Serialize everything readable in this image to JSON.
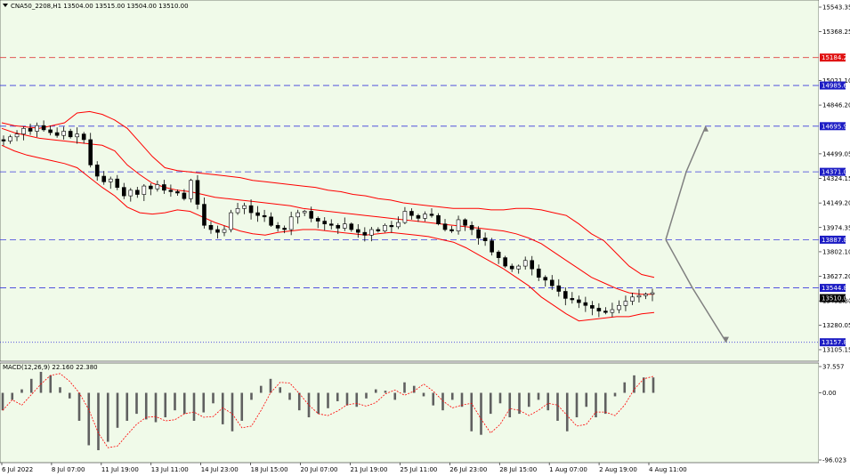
{
  "header": {
    "symbol_line": "CNA50_2208,H1  13504.00 13515.00 13504.00 13510.00",
    "macd_label": "MACD(12,26,9) 22.160 22.380"
  },
  "colors": {
    "background": "#f0fae9",
    "candle": "#000000",
    "band": "#ff0000",
    "hline_blue": "#3a3adc",
    "hline_red": "#e04040",
    "hline_dotted": "#3a3adc",
    "forecast": "#808080",
    "macd_hist": "#606060",
    "macd_signal": "#ff0000",
    "tag_blue_bg": "#1c1cc4",
    "tag_red_bg": "#e01010",
    "tag_black_bg": "#000000"
  },
  "chart_data": [
    {
      "type": "candlestick",
      "title": "CNA50_2208,H1",
      "ohlc_last": {
        "open": 13504.0,
        "high": 13515.0,
        "low": 13504.0,
        "close": 13510.0
      },
      "y_ticks": [
        "15543.35",
        "15368.25",
        "15021.10",
        "14846.20",
        "14499.05",
        "14324.15",
        "14149.20",
        "13974.35",
        "13802.10",
        "13627.20",
        "13452.30",
        "13280.05",
        "13105.15"
      ],
      "x_ticks": [
        "6 Jul 2022",
        "8 Jul 07:00",
        "11 Jul 19:00",
        "13 Jul 11:00",
        "14 Jul 23:00",
        "18 Jul 15:00",
        "20 Jul 07:00",
        "21 Jul 19:00",
        "25 Jul 11:00",
        "26 Jul 23:00",
        "28 Jul 15:00",
        "1 Aug 07:00",
        "2 Aug 19:00",
        "4 Aug 11:00"
      ],
      "ylim": [
        13060,
        15590
      ],
      "close_path": [
        14590,
        14620,
        14640,
        14680,
        14660,
        14700,
        14670,
        14650,
        14630,
        14660,
        14620,
        14640,
        14600,
        14420,
        14340,
        14300,
        14320,
        14260,
        14200,
        14240,
        14210,
        14270,
        14250,
        14280,
        14240,
        14230,
        14220,
        14180,
        14310,
        14140,
        13990,
        13960,
        13940,
        13960,
        14080,
        14110,
        14130,
        14080,
        14060,
        14050,
        13990,
        13970,
        13960,
        14050,
        14080,
        14090,
        14040,
        14020,
        14000,
        13990,
        13970,
        14000,
        13960,
        13940,
        13920,
        13960,
        13950,
        13990,
        13980,
        14010,
        14090,
        14060,
        14040,
        14070,
        14060,
        14000,
        13960,
        13950,
        14030,
        13990,
        13960,
        13900,
        13880,
        13800,
        13760,
        13700,
        13680,
        13700,
        13740,
        13680,
        13620,
        13600,
        13560,
        13520,
        13470,
        13460,
        13440,
        13420,
        13400,
        13380,
        13370,
        13390,
        13420,
        13450,
        13480,
        13490,
        13500,
        13510
      ],
      "bollinger": {
        "upper": [
          14720,
          14700,
          14690,
          14680,
          14700,
          14720,
          14790,
          14800,
          14780,
          14740,
          14680,
          14580,
          14480,
          14400,
          14380,
          14370,
          14360,
          14350,
          14340,
          14330,
          14310,
          14300,
          14290,
          14280,
          14270,
          14260,
          14240,
          14230,
          14210,
          14200,
          14180,
          14170,
          14150,
          14140,
          14130,
          14120,
          14110,
          14110,
          14110,
          14100,
          14100,
          14110,
          14110,
          14100,
          14080,
          14060,
          14000,
          13930,
          13880,
          13790,
          13700,
          13640,
          13620
        ],
        "middle": [
          14680,
          14650,
          14630,
          14610,
          14600,
          14590,
          14580,
          14570,
          14560,
          14520,
          14420,
          14350,
          14290,
          14260,
          14240,
          14230,
          14210,
          14190,
          14180,
          14170,
          14160,
          14150,
          14140,
          14130,
          14110,
          14100,
          14090,
          14080,
          14070,
          14060,
          14050,
          14040,
          14030,
          14020,
          14010,
          14000,
          13990,
          13980,
          13970,
          13960,
          13950,
          13930,
          13900,
          13860,
          13800,
          13740,
          13680,
          13620,
          13580,
          13540,
          13510,
          13500,
          13500
        ],
        "lower": [
          14560,
          14520,
          14490,
          14470,
          14450,
          14430,
          14400,
          14330,
          14260,
          14200,
          14120,
          14080,
          14070,
          14080,
          14100,
          14090,
          14050,
          14010,
          13980,
          13950,
          13930,
          13920,
          13940,
          13950,
          13960,
          13960,
          13950,
          13940,
          13930,
          13920,
          13930,
          13940,
          13930,
          13920,
          13910,
          13890,
          13870,
          13830,
          13780,
          13730,
          13680,
          13620,
          13560,
          13480,
          13420,
          13360,
          13310,
          13320,
          13330,
          13340,
          13340,
          13360,
          13370
        ]
      },
      "horizontal_levels": [
        {
          "value": 15184.26,
          "label": "15184.26",
          "style": "dashed",
          "color": "red"
        },
        {
          "value": 14985.62,
          "label": "14985.62",
          "style": "dashed",
          "color": "blue"
        },
        {
          "value": 14695.99,
          "label": "14695.99",
          "style": "dashed",
          "color": "blue"
        },
        {
          "value": 14371.01,
          "label": "14371.01",
          "style": "dashed",
          "color": "blue"
        },
        {
          "value": 13887.88,
          "label": "13887.88",
          "style": "dashed",
          "color": "blue"
        },
        {
          "value": 13544.84,
          "label": "13544.84",
          "style": "dashed",
          "color": "blue"
        },
        {
          "value": 13157.84,
          "label": "13157.84",
          "style": "dotted",
          "color": "blue"
        }
      ],
      "current_price": {
        "value": 13510.0,
        "label": "13510.00"
      },
      "forecast_paths": [
        [
          13887.88,
          14371.01,
          14695.99
        ],
        [
          13887.88,
          13544.84,
          13157.84
        ]
      ]
    },
    {
      "type": "bar",
      "title": "MACD(12,26,9)",
      "macd_value": 22.16,
      "signal_value": 22.38,
      "y_ticks": [
        "37.557",
        "0.00",
        "-96.023"
      ],
      "ylim": [
        -96.023,
        37.557
      ],
      "histogram": [
        -25,
        -10,
        5,
        20,
        30,
        25,
        8,
        -8,
        -40,
        -75,
        -82,
        -70,
        -50,
        -40,
        -30,
        -38,
        -42,
        -35,
        -25,
        -30,
        -40,
        -28,
        -15,
        -45,
        -55,
        -40,
        -10,
        10,
        20,
        8,
        -10,
        -25,
        -35,
        -30,
        -22,
        -12,
        -18,
        -20,
        -8,
        5,
        3,
        -10,
        15,
        10,
        -5,
        -18,
        -25,
        -10,
        -20,
        -55,
        -60,
        -30,
        -15,
        -35,
        -30,
        -20,
        -10,
        -25,
        -40,
        -55,
        -35,
        -20,
        -35,
        -30,
        -5,
        15,
        25,
        22,
        22
      ]
    }
  ]
}
